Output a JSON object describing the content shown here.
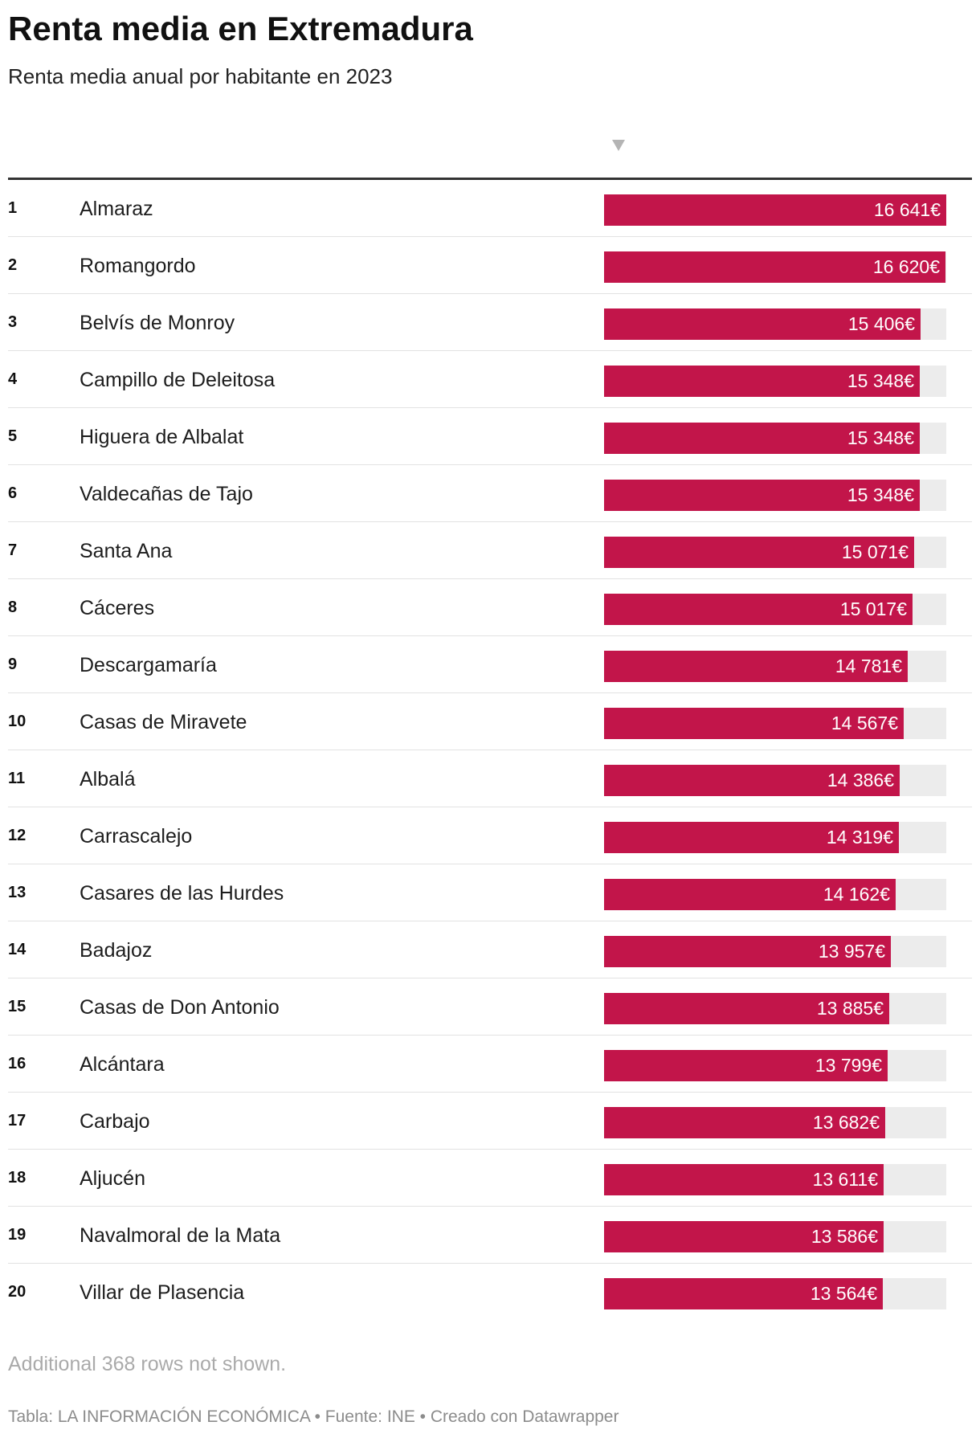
{
  "title": "Renta media en Extremadura",
  "subtitle": "Renta media anual por habitante en 2023",
  "note": "Additional 368 rows not shown.",
  "footer": "Tabla: LA INFORMACIÓN ECONÓMICA • Fuente: INE • Creado con Datawrapper",
  "colors": {
    "bar": "#c2154a",
    "track": "#ececec",
    "rule": "#333333"
  },
  "chart_data": {
    "type": "table",
    "title": "Renta media en Extremadura",
    "subtitle": "Renta media anual por habitante en 2023",
    "bar_max": 16641,
    "sorted": "descending",
    "rows": [
      {
        "rank": "1",
        "name": "Almaraz",
        "value": 16641,
        "label": "16 641€"
      },
      {
        "rank": "2",
        "name": "Romangordo",
        "value": 16620,
        "label": "16 620€"
      },
      {
        "rank": "3",
        "name": "Belvís de Monroy",
        "value": 15406,
        "label": "15 406€"
      },
      {
        "rank": "4",
        "name": "Campillo de Deleitosa",
        "value": 15348,
        "label": "15 348€"
      },
      {
        "rank": "5",
        "name": "Higuera de Albalat",
        "value": 15348,
        "label": "15 348€"
      },
      {
        "rank": "6",
        "name": "Valdecañas de Tajo",
        "value": 15348,
        "label": "15 348€"
      },
      {
        "rank": "7",
        "name": "Santa Ana",
        "value": 15071,
        "label": "15 071€"
      },
      {
        "rank": "8",
        "name": "Cáceres",
        "value": 15017,
        "label": "15 017€"
      },
      {
        "rank": "9",
        "name": "Descargamaría",
        "value": 14781,
        "label": "14 781€"
      },
      {
        "rank": "10",
        "name": "Casas de Miravete",
        "value": 14567,
        "label": "14 567€"
      },
      {
        "rank": "11",
        "name": "Albalá",
        "value": 14386,
        "label": "14 386€"
      },
      {
        "rank": "12",
        "name": "Carrascalejo",
        "value": 14319,
        "label": "14 319€"
      },
      {
        "rank": "13",
        "name": "Casares de las Hurdes",
        "value": 14162,
        "label": "14 162€"
      },
      {
        "rank": "14",
        "name": "Badajoz",
        "value": 13957,
        "label": "13 957€"
      },
      {
        "rank": "15",
        "name": "Casas de Don Antonio",
        "value": 13885,
        "label": "13 885€"
      },
      {
        "rank": "16",
        "name": "Alcántara",
        "value": 13799,
        "label": "13 799€"
      },
      {
        "rank": "17",
        "name": "Carbajo",
        "value": 13682,
        "label": "13 682€"
      },
      {
        "rank": "18",
        "name": "Aljucén",
        "value": 13611,
        "label": "13 611€"
      },
      {
        "rank": "19",
        "name": "Navalmoral de la Mata",
        "value": 13586,
        "label": "13 586€"
      },
      {
        "rank": "20",
        "name": "Villar de Plasencia",
        "value": 13564,
        "label": "13 564€"
      }
    ]
  }
}
